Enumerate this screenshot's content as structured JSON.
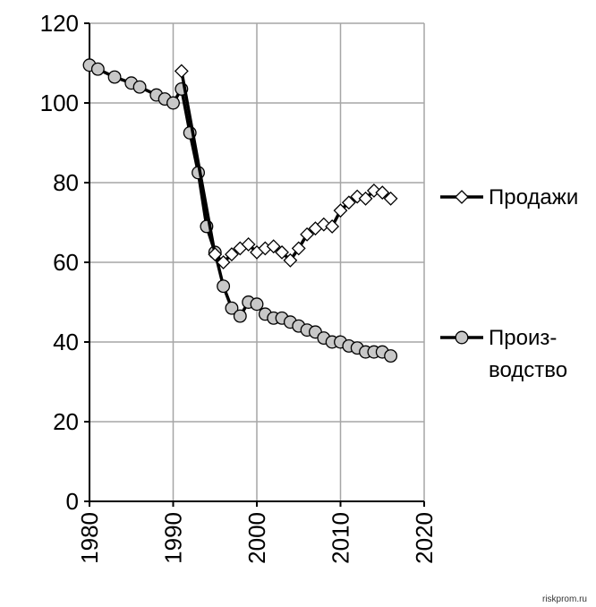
{
  "chart_data": {
    "type": "line",
    "title": "",
    "xlabel": "",
    "ylabel": "",
    "xlim": [
      1980,
      2020
    ],
    "ylim": [
      0,
      120
    ],
    "x_ticks": [
      1980,
      1990,
      2000,
      2010,
      2020
    ],
    "y_ticks": [
      0,
      20,
      40,
      60,
      80,
      100,
      120
    ],
    "grid": true,
    "legend_position": "right",
    "series": [
      {
        "name": "Продажи",
        "marker": "diamond",
        "marker_fill": "#ffffff",
        "line_color": "#000000",
        "x": [
          1991,
          1995,
          1996,
          1997,
          1998,
          1999,
          2000,
          2001,
          2002,
          2003,
          2004,
          2005,
          2006,
          2007,
          2008,
          2009,
          2010,
          2011,
          2012,
          2013,
          2014,
          2015,
          2016
        ],
        "y": [
          108,
          62,
          60,
          62,
          63.5,
          64.5,
          62.5,
          63.5,
          64,
          62.5,
          60.5,
          63.5,
          67,
          68.5,
          69.5,
          69,
          73,
          75,
          76.5,
          76,
          78,
          77.5,
          76
        ]
      },
      {
        "name": "Произ-водство",
        "name_lines": [
          "Произ-",
          "водство"
        ],
        "marker": "circle",
        "marker_fill": "#c8c8c8",
        "line_color": "#000000",
        "x": [
          1980,
          1981,
          1983,
          1985,
          1986,
          1988,
          1989,
          1990,
          1991,
          1992,
          1993,
          1994,
          1995,
          1996,
          1997,
          1998,
          1999,
          2000,
          2001,
          2002,
          2003,
          2004,
          2005,
          2006,
          2007,
          2008,
          2009,
          2010,
          2011,
          2012,
          2013,
          2014,
          2015,
          2016
        ],
        "y": [
          109.5,
          108.5,
          106.5,
          105,
          104,
          102,
          101,
          100,
          103.5,
          92.5,
          82.5,
          69,
          62.5,
          54,
          48.5,
          46.5,
          50,
          49.5,
          47,
          46,
          46,
          45,
          44,
          43,
          42.5,
          41,
          40,
          40,
          39,
          38.5,
          37.5,
          37.5,
          37.5,
          36.5
        ]
      }
    ]
  },
  "watermark": "riskprom.ru"
}
